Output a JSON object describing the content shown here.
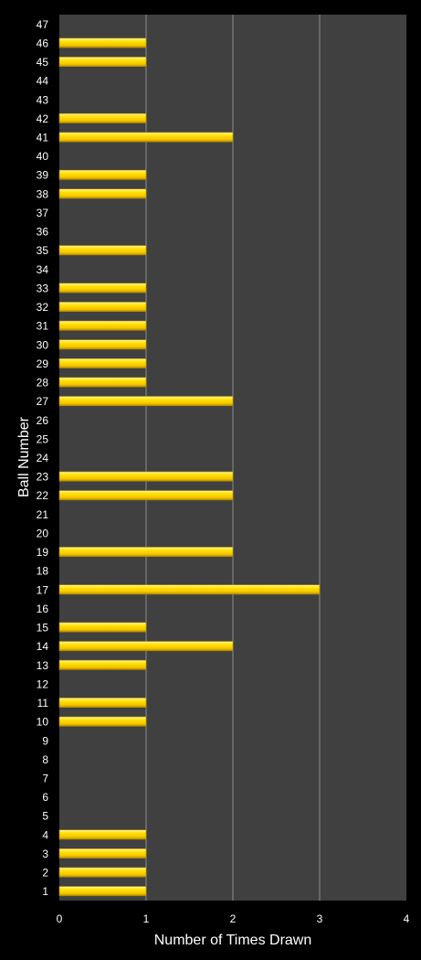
{
  "chart_data": {
    "type": "bar",
    "orientation": "horizontal",
    "xlabel": "Number of Times Drawn",
    "ylabel": "Ball Number",
    "xlim": [
      0,
      4
    ],
    "xticks": [
      "0",
      "1",
      "2",
      "3",
      "4"
    ],
    "grid": "vertical",
    "categories": [
      "1",
      "2",
      "3",
      "4",
      "5",
      "6",
      "7",
      "8",
      "9",
      "10",
      "11",
      "12",
      "13",
      "14",
      "15",
      "16",
      "17",
      "18",
      "19",
      "20",
      "21",
      "22",
      "23",
      "24",
      "25",
      "26",
      "27",
      "28",
      "29",
      "30",
      "31",
      "32",
      "33",
      "34",
      "35",
      "36",
      "37",
      "38",
      "39",
      "40",
      "41",
      "42",
      "43",
      "44",
      "45",
      "46",
      "47"
    ],
    "values": [
      1,
      1,
      1,
      1,
      0,
      0,
      0,
      0,
      0,
      1,
      1,
      0,
      1,
      2,
      1,
      0,
      3,
      0,
      2,
      0,
      0,
      2,
      2,
      0,
      0,
      0,
      2,
      1,
      1,
      1,
      1,
      1,
      1,
      0,
      1,
      0,
      0,
      1,
      1,
      0,
      2,
      1,
      0,
      0,
      1,
      1,
      0
    ],
    "colors": {
      "background": "#000000",
      "plot_area": "#404040",
      "gridline": "#8c8c8c",
      "bar": "#ffd700",
      "bar_highlight": "#fff6a0",
      "bar_shadow": "#b08a00",
      "text": "#ffffff"
    }
  }
}
